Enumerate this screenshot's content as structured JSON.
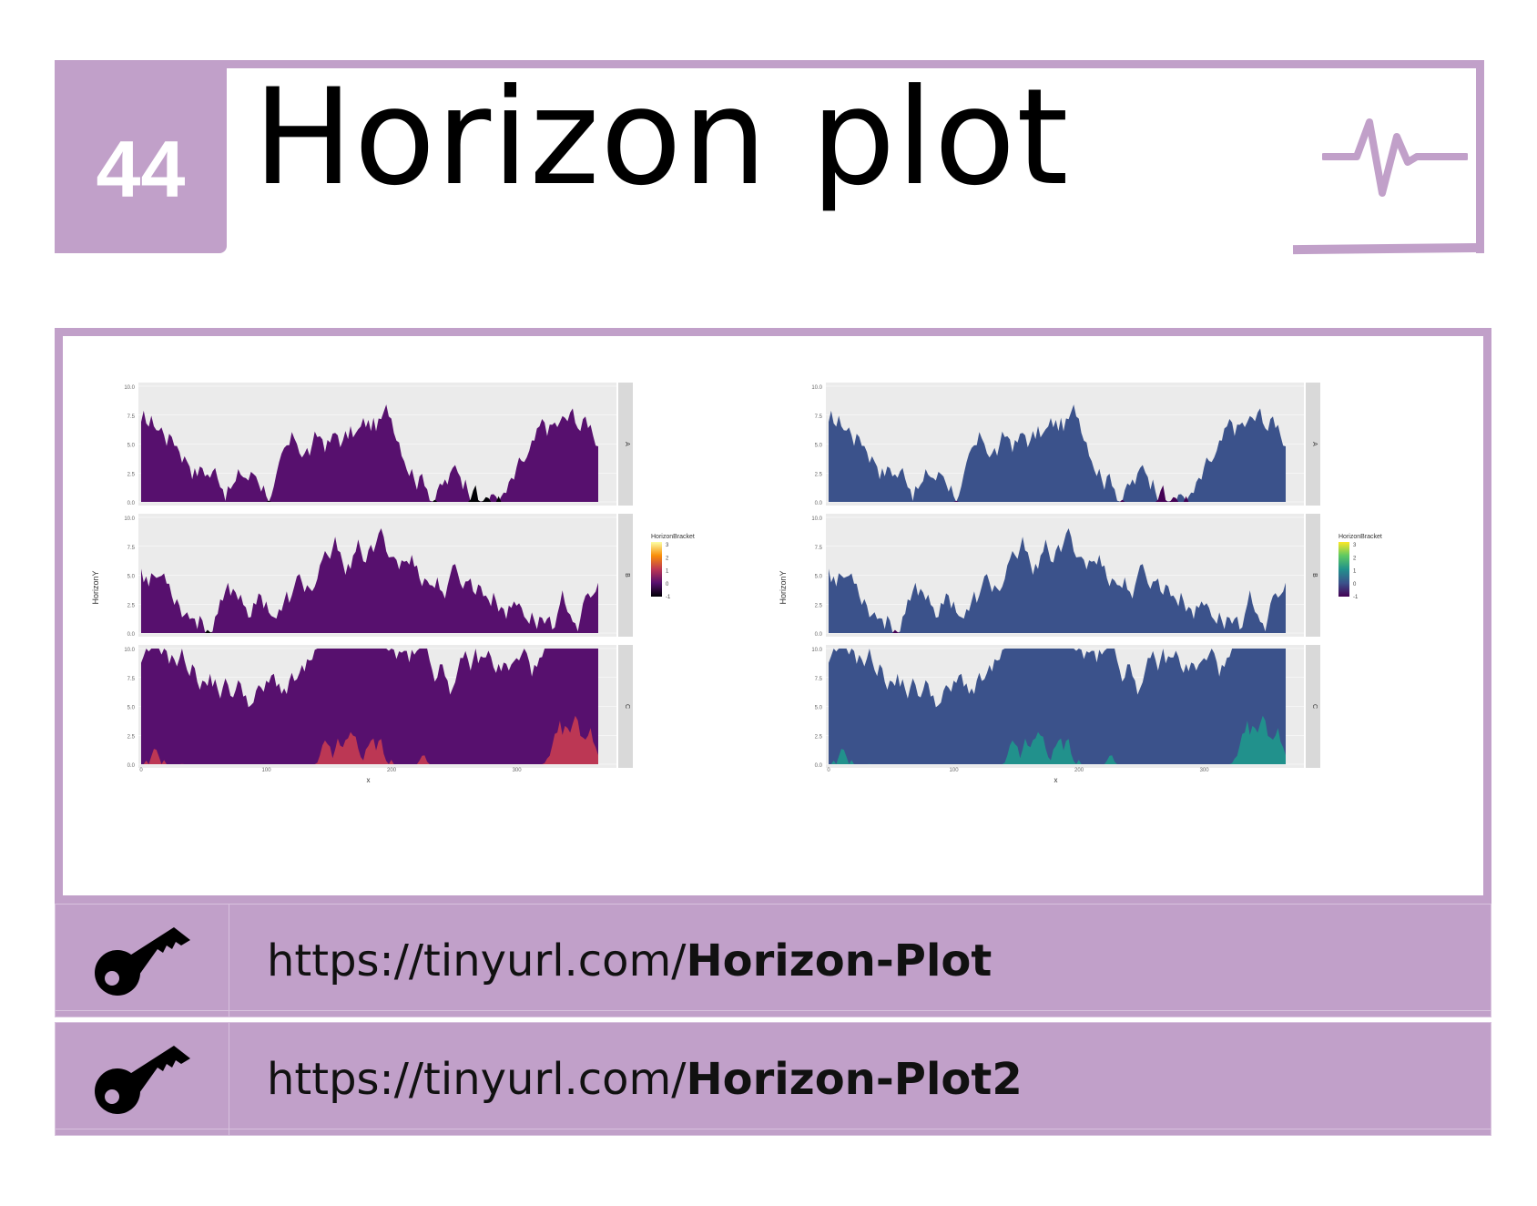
{
  "header": {
    "number": "44",
    "title": "Horizon plot",
    "icon": "pulse-icon"
  },
  "colors": {
    "accent": "#c1a0c9",
    "panel_bg": "#ebebeb",
    "strip_bg": "#d9d9d9"
  },
  "links": [
    {
      "prefix": "https://tinyurl.com/",
      "bold": "Horizon-Plot",
      "icon": "key-icon"
    },
    {
      "prefix": "https://tinyurl.com/",
      "bold": "Horizon-Plot2",
      "icon": "key-icon"
    }
  ],
  "chart_data": [
    {
      "type": "area",
      "ylabel": "HorizonY",
      "xlabel": "x",
      "x_ticks": [
        0,
        100,
        200,
        300
      ],
      "y_ticks": [
        "0.0",
        "2.5",
        "5.0",
        "7.5",
        "10.0"
      ],
      "xlim": [
        0,
        365
      ],
      "ylim": [
        0,
        10
      ],
      "facets": [
        "A",
        "B",
        "C"
      ],
      "legend": {
        "title": "HorizonBracket",
        "position": "right",
        "ticks": [
          "3",
          "2",
          "1",
          "0",
          "-1"
        ]
      },
      "palette": [
        "#fcffa4",
        "#f98e09",
        "#bc3754",
        "#57106e",
        "#000004"
      ]
    },
    {
      "type": "area",
      "ylabel": "HorizonY",
      "xlabel": "x",
      "x_ticks": [
        0,
        100,
        200,
        300
      ],
      "y_ticks": [
        "0.0",
        "2.5",
        "5.0",
        "7.5",
        "10.0"
      ],
      "xlim": [
        0,
        365
      ],
      "ylim": [
        0,
        10
      ],
      "facets": [
        "A",
        "B",
        "C"
      ],
      "legend": {
        "title": "HorizonBracket",
        "position": "right",
        "ticks": [
          "3",
          "2",
          "1",
          "0",
          "-1"
        ]
      },
      "palette": [
        "#fde725",
        "#5ec962",
        "#21918c",
        "#3b528b",
        "#440154"
      ]
    }
  ]
}
